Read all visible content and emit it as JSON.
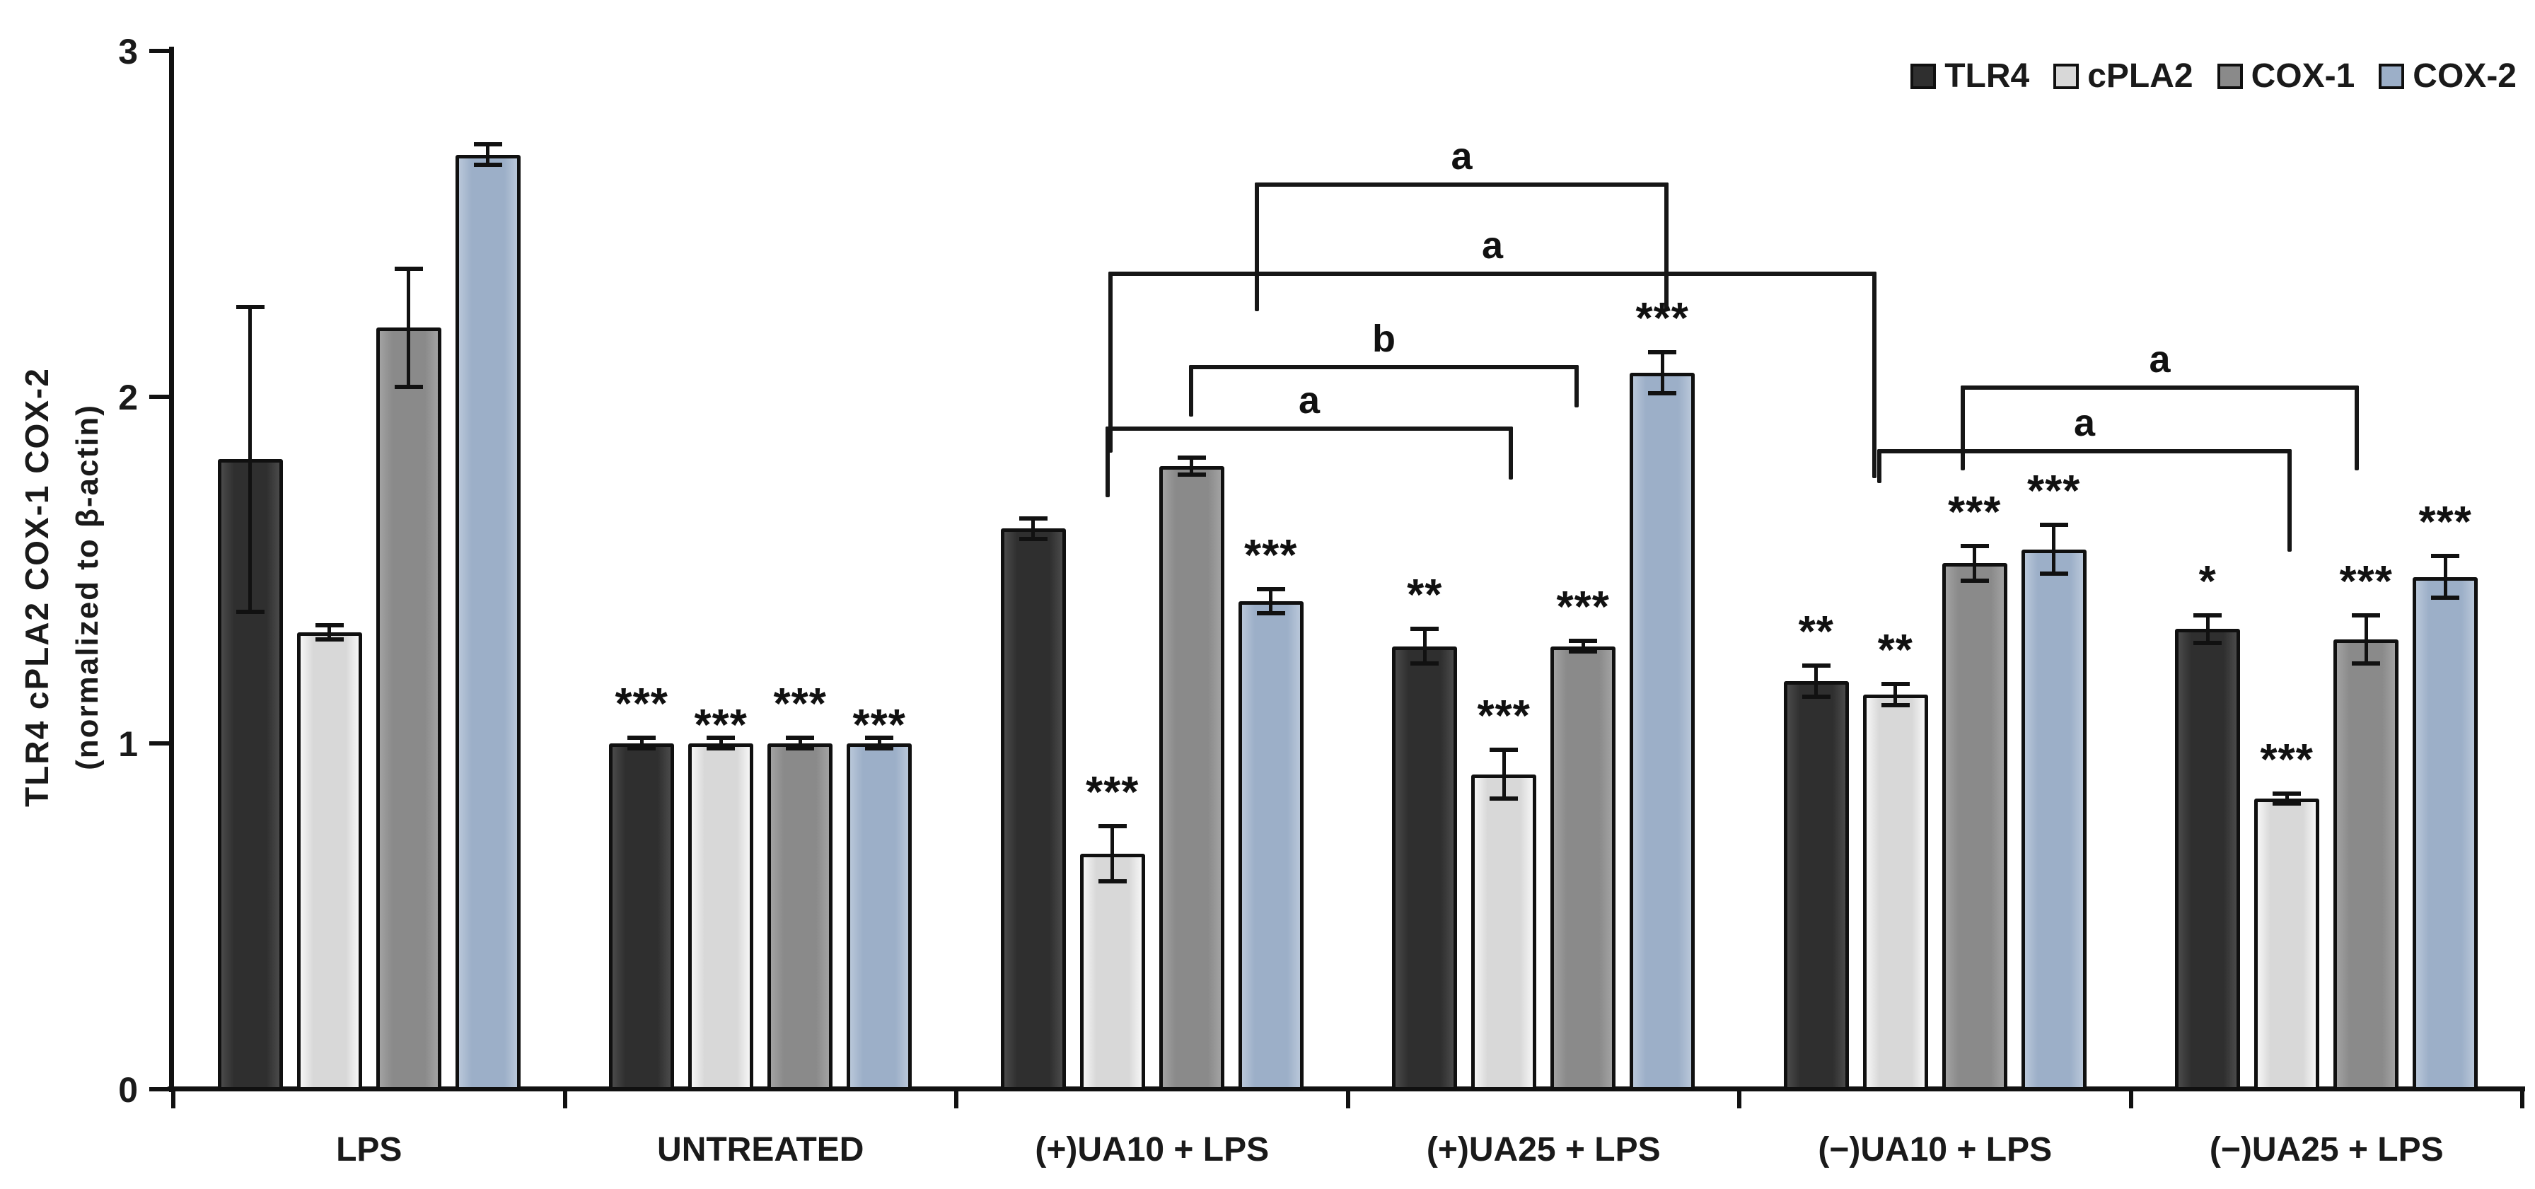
{
  "figure": {
    "background": "#ffffff",
    "axis_color": "#111111",
    "text_color": "#1a1a1a"
  },
  "chart_data": {
    "type": "bar",
    "title": "",
    "ylabel_line1": "TLR4  cPLA2  COX-1  COX-2",
    "ylabel_line2": "(normalized to β-actin)",
    "xlabel": "",
    "ylim": [
      0,
      3
    ],
    "yticks": [
      "0",
      "1",
      "2",
      "3"
    ],
    "grid": false,
    "legend_position": "top-right",
    "categories": [
      "LPS",
      "UNTREATED",
      "(+)UA10 + LPS",
      "(+)UA25 + LPS",
      "(−)UA10 + LPS",
      "(−)UA25 + LPS"
    ],
    "series": [
      {
        "name": "TLR4",
        "color": "#2f2f2f",
        "edge_color": "#4a4a4a",
        "values": [
          1.82,
          1.0,
          1.62,
          1.28,
          1.18,
          1.33
        ],
        "errors": [
          0.44,
          0.015,
          0.03,
          0.05,
          0.045,
          0.04
        ],
        "sig": [
          "",
          "***",
          "",
          "**",
          "**",
          "*"
        ],
        "sig_dy": [
          0,
          0,
          0,
          0,
          0,
          0
        ]
      },
      {
        "name": "cPLA2",
        "color": "#d8d8d8",
        "edge_color": "#f6f6f6",
        "values": [
          1.32,
          1.0,
          0.68,
          0.91,
          1.14,
          0.84
        ],
        "errors": [
          0.02,
          0.015,
          0.08,
          0.07,
          0.03,
          0.015
        ],
        "sig": [
          "",
          "***",
          "***",
          "***",
          "**",
          "***"
        ],
        "sig_dy": [
          0,
          30,
          0,
          0,
          0,
          0
        ]
      },
      {
        "name": "COX-1",
        "color": "#8a8a8a",
        "edge_color": "#a2a2a2",
        "values": [
          2.2,
          1.0,
          1.8,
          1.28,
          1.52,
          1.3
        ],
        "errors": [
          0.17,
          0.015,
          0.025,
          0.015,
          0.05,
          0.07
        ],
        "sig": [
          "",
          "***",
          "",
          "***",
          "***",
          "***"
        ],
        "sig_dy": [
          0,
          0,
          0,
          0,
          0,
          0
        ]
      },
      {
        "name": "COX-2",
        "color": "#9cafc8",
        "edge_color": "#b9c7d9",
        "values": [
          2.7,
          1.0,
          1.41,
          2.07,
          1.56,
          1.48
        ],
        "errors": [
          0.03,
          0.015,
          0.035,
          0.06,
          0.07,
          0.06
        ],
        "sig": [
          "",
          "***",
          "***",
          "***",
          "***",
          "***"
        ],
        "sig_dy": [
          0,
          30,
          0,
          0,
          0,
          0
        ]
      }
    ],
    "significance_brackets": [
      {
        "label": "a",
        "x1": 1774,
        "x2": 2359,
        "y": 258,
        "leg1": 182,
        "leg2": 182
      },
      {
        "label": "a",
        "x1": 1567,
        "x2": 2653,
        "y": 384,
        "leg1": 256,
        "leg2": 292
      },
      {
        "label": "b",
        "x1": 1681,
        "x2": 2232,
        "y": 516,
        "leg1": 73,
        "leg2": 60
      },
      {
        "label": "a",
        "x1": 1563,
        "x2": 2139,
        "y": 603,
        "leg1": 100,
        "leg2": 75
      },
      {
        "label": "a",
        "x1": 2772,
        "x2": 3335,
        "y": 545,
        "leg1": 120,
        "leg2": 120
      },
      {
        "label": "a",
        "x1": 2654,
        "x2": 3240,
        "y": 635,
        "leg1": 48,
        "leg2": 145
      }
    ]
  }
}
